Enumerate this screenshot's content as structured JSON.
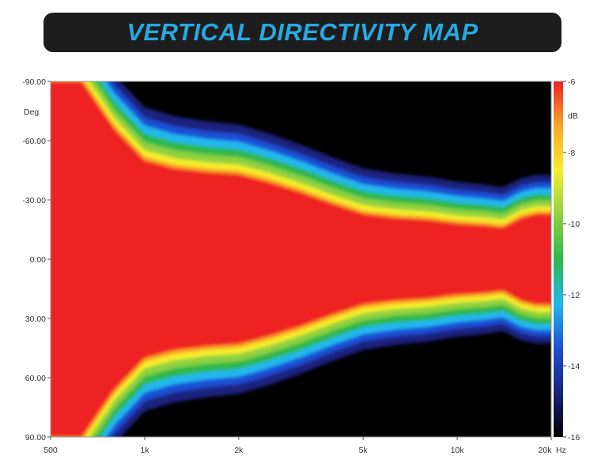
{
  "title": "VERTICAL DIRECTIVITY MAP",
  "chart_data": {
    "type": "heatmap",
    "title": "VERTICAL DIRECTIVITY MAP",
    "x_scale": "log",
    "x_range": [
      500,
      20000
    ],
    "x_ticks": [
      500,
      1000,
      2000,
      5000,
      10000,
      20000
    ],
    "x_tick_labels": [
      "500",
      "1k",
      "2k",
      "5k",
      "10k",
      "20k"
    ],
    "x_unit": "Hz",
    "y_range": [
      -90,
      90
    ],
    "y_ticks": [
      -90,
      -60,
      -30,
      0,
      30,
      60,
      90
    ],
    "y_tick_labels": [
      "-90.00",
      "-60.00",
      "-30.00",
      "0.00",
      "30.00",
      "60.00",
      "90.00"
    ],
    "y_unit": "Deg",
    "colorbar": {
      "range": [
        -16,
        -6
      ],
      "ticks": [
        -6,
        -8,
        -10,
        -12,
        -14,
        -16
      ],
      "tick_labels": [
        "-6",
        "-8",
        "-10",
        "-12",
        "-14",
        "-16"
      ],
      "unit": "dB",
      "colors": [
        "#000000",
        "#1a237e",
        "#1e4fd6",
        "#22b8ee",
        "#2fb84a",
        "#8fd13f",
        "#f7ee2a",
        "#f9a628",
        "#ee2024"
      ]
    },
    "contour_angle_at_minus6dB_deg": {
      "freq_hz": [
        500,
        630,
        800,
        1000,
        1250,
        1600,
        2000,
        2500,
        3150,
        4000,
        5000,
        6300,
        8000,
        10000,
        12500,
        14000,
        16000,
        18000,
        20000
      ],
      "angle": [
        90,
        90,
        66,
        50,
        46,
        44,
        43,
        39,
        34,
        28,
        23,
        21,
        20,
        18,
        17,
        16,
        21,
        23,
        23
      ]
    }
  }
}
